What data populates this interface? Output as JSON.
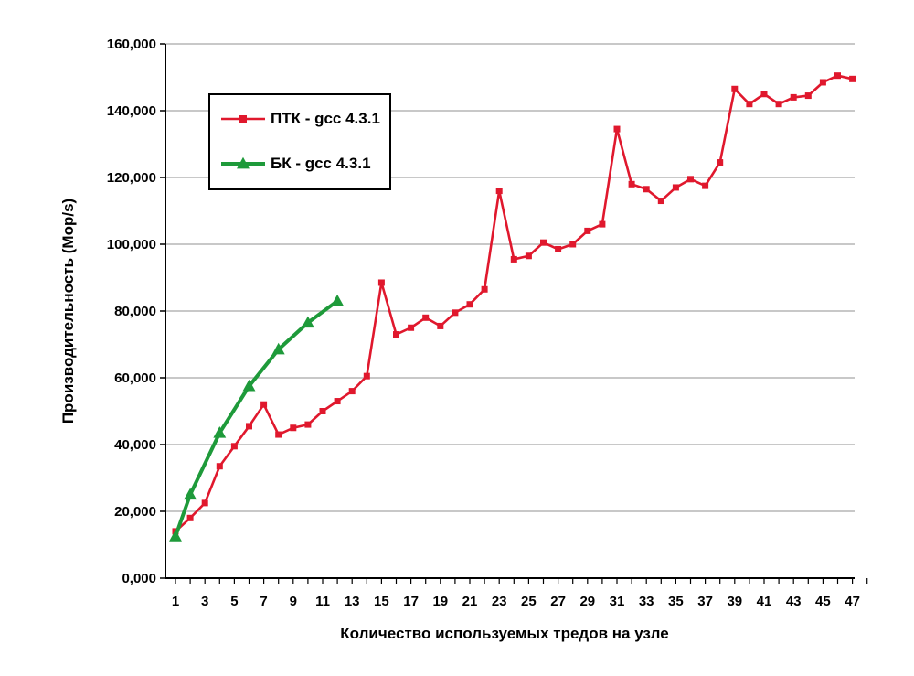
{
  "chart_data": {
    "type": "line",
    "ylabel": "Производительность (Mop/s)",
    "xlabel": "Количество используемых тредов на узле",
    "ylim": [
      0,
      160000
    ],
    "y_ticks": [
      0,
      20000,
      40000,
      60000,
      80000,
      100000,
      120000,
      140000,
      160000
    ],
    "y_tick_labels": [
      "0,000",
      "20,000",
      "40,000",
      "60,000",
      "80,000",
      "100,000",
      "120,000",
      "140,000",
      "160,000"
    ],
    "xlim": [
      1,
      48
    ],
    "x_tick_labels": [
      "1",
      "3",
      "5",
      "7",
      "9",
      "11",
      "13",
      "15",
      "17",
      "19",
      "21",
      "23",
      "25",
      "27",
      "29",
      "31",
      "33",
      "35",
      "37",
      "39",
      "41",
      "43",
      "45",
      "47"
    ],
    "grid": "horizontal",
    "legend_position": "top-left",
    "series": [
      {
        "name": "ПТК - gcc 4.3.1",
        "color": "#e0182d",
        "marker": "square",
        "x": [
          1,
          2,
          3,
          4,
          5,
          6,
          7,
          8,
          9,
          10,
          11,
          12,
          13,
          14,
          15,
          16,
          17,
          18,
          19,
          20,
          21,
          22,
          23,
          24,
          25,
          26,
          27,
          28,
          29,
          30,
          31,
          32,
          33,
          34,
          35,
          36,
          37,
          38,
          39,
          40,
          41,
          42,
          43,
          44,
          45,
          46,
          47
        ],
        "values": [
          14000,
          18000,
          22500,
          33500,
          39500,
          45500,
          52000,
          43000,
          45000,
          46000,
          50000,
          53000,
          56000,
          60500,
          88500,
          73000,
          75000,
          78000,
          75500,
          79500,
          82000,
          86500,
          116000,
          95500,
          96500,
          100500,
          98500,
          100000,
          104000,
          106000,
          134500,
          118000,
          116500,
          113000,
          117000,
          119500,
          117500,
          124500,
          146500,
          142000,
          145000,
          142000,
          144000,
          144500,
          148500,
          150500,
          149500
        ]
      },
      {
        "name": "БК - gcc 4.3.1",
        "color": "#1e9a3a",
        "marker": "triangle",
        "x": [
          1,
          2,
          4,
          6,
          8,
          10,
          12
        ],
        "values": [
          12500,
          25000,
          43500,
          57500,
          68500,
          76500,
          83000
        ]
      }
    ]
  }
}
